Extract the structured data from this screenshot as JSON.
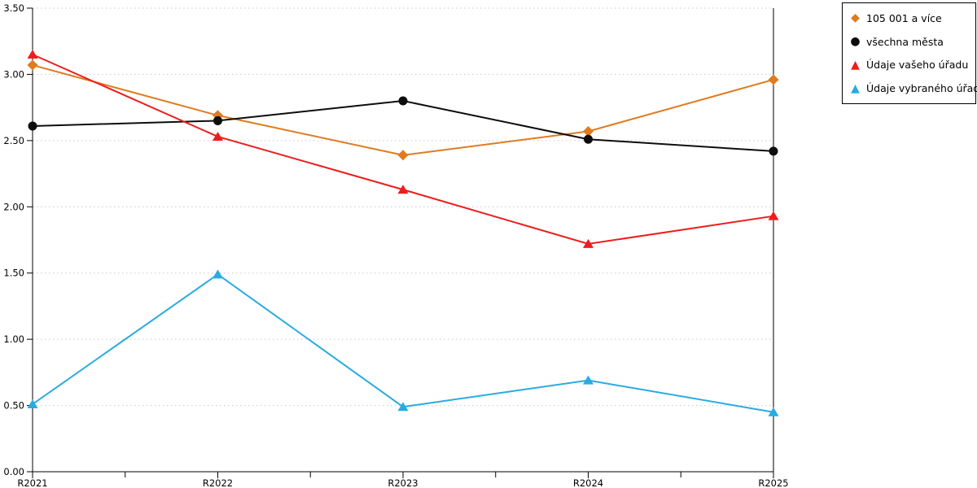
{
  "chart_data": {
    "type": "line",
    "categories": [
      "R2021",
      "R2022",
      "R2023",
      "R2024",
      "R2025"
    ],
    "series": [
      {
        "name": "105 001 a více",
        "marker": "diamond",
        "color": "#e07b1e",
        "values": [
          3.07,
          2.69,
          2.39,
          2.57,
          2.96
        ]
      },
      {
        "name": "všechna města",
        "marker": "circle",
        "color": "#0d0d0d",
        "values": [
          2.61,
          2.65,
          2.8,
          2.51,
          2.42
        ]
      },
      {
        "name": "Údaje vašeho úřadu",
        "marker": "triangle",
        "color": "#ee1c1c",
        "values": [
          3.15,
          2.53,
          2.13,
          1.72,
          1.93
        ]
      },
      {
        "name": "Údaje vybraného úřadu",
        "marker": "triangle",
        "color": "#29abe2",
        "values": [
          0.51,
          1.49,
          0.49,
          0.69,
          0.45
        ]
      }
    ],
    "title": "",
    "xlabel": "",
    "ylabel": "",
    "ylim": [
      0,
      3.5
    ],
    "ytick_step": 0.5,
    "ytick_labels": [
      "0.00",
      "0.50",
      "1.00",
      "1.50",
      "2.00",
      "2.50",
      "3.00",
      "3.50"
    ],
    "grid": "horizontal-dotted",
    "gridline_color": "#c8c8c8",
    "axis_color": "#000000",
    "legend_position": "top-right"
  },
  "icons": {
    "diamond": "◆",
    "circle": "●",
    "triangle": "▲"
  }
}
